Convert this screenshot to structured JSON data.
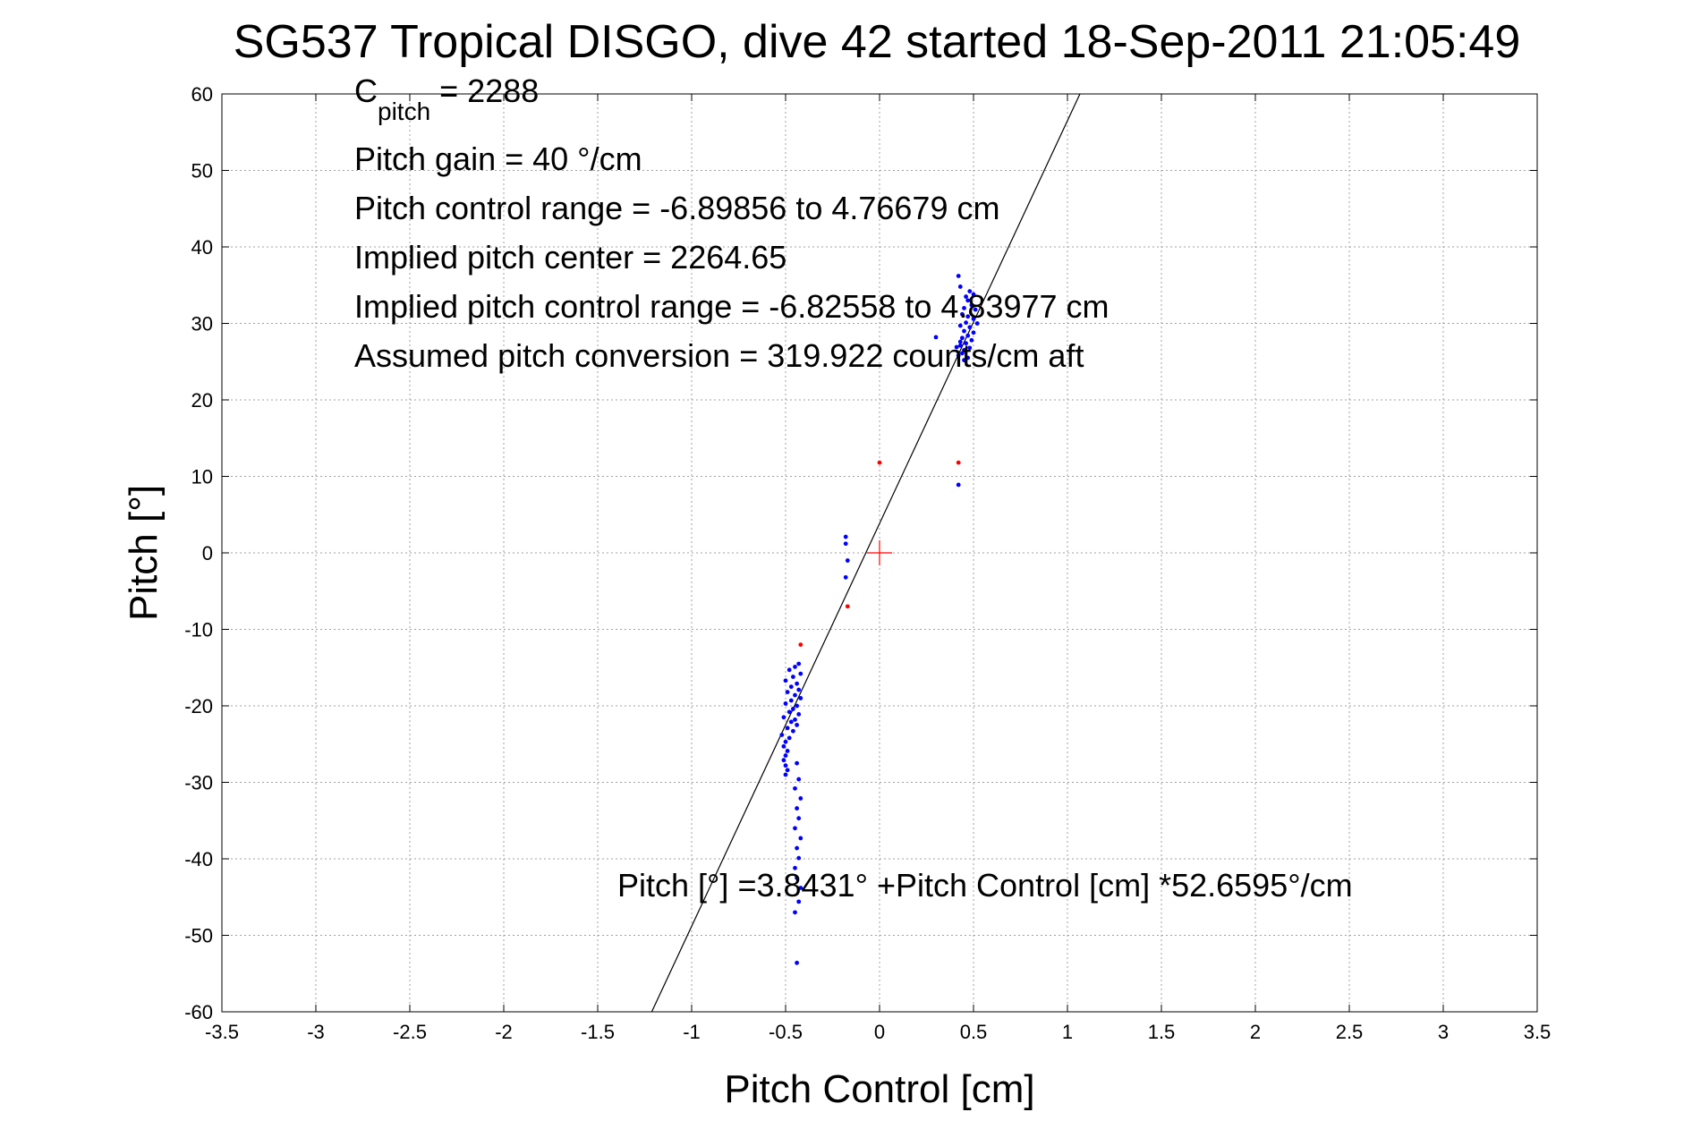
{
  "chart_data": {
    "type": "scatter",
    "title": "SG537 Tropical DISGO, dive 42 started 18-Sep-2011 21:05:49",
    "xlabel": "Pitch Control [cm]",
    "ylabel": "Pitch [°]",
    "xlim": [
      -3.5,
      3.5
    ],
    "ylim": [
      -60,
      60
    ],
    "grid": true,
    "xticks": [
      -3.5,
      -3,
      -2.5,
      -2,
      -1.5,
      -1,
      -0.5,
      0,
      0.5,
      1,
      1.5,
      2,
      2.5,
      3,
      3.5
    ],
    "xtick_labels": [
      "-3.5",
      "-3",
      "-2.5",
      "-2",
      "-1.5",
      "-1",
      "-0.5",
      "0",
      "0.5",
      "1",
      "1.5",
      "2",
      "2.5",
      "3",
      "3.5"
    ],
    "yticks": [
      60,
      50,
      40,
      30,
      20,
      10,
      0,
      -10,
      -20,
      -30,
      -40,
      -50,
      -60
    ],
    "ytick_labels": [
      "60",
      "50",
      "40",
      "30",
      "20",
      "10",
      "0",
      "-10",
      "-20",
      "-30",
      "-40",
      "-50",
      "-60"
    ],
    "annotations": {
      "cpitch_base": "C",
      "cpitch_sub": "pitch",
      "cpitch_value": " = 2288",
      "lines": [
        "Pitch gain = 40 °/cm",
        "Pitch control range = -6.89856 to 4.76679 cm",
        "Implied pitch center = 2264.65",
        "Implied pitch control range = -6.82558 to 4.83977 cm",
        "Assumed pitch conversion = 319.922 counts/cm aft"
      ],
      "fit_equation": "Pitch [°] =3.8431° +Pitch Control [cm] *52.6595°/cm"
    },
    "fit_line": {
      "intercept": 3.8431,
      "slope": 52.6595
    },
    "center_marker": {
      "x": 0,
      "y": 0,
      "color": "#ff0000"
    },
    "colors": {
      "blue": "#0000ff",
      "red": "#ff0000",
      "line": "#000000",
      "grid": "#a0a0a0"
    },
    "series": [
      {
        "color": "#0000ff",
        "points": [
          [
            0.42,
            36.2
          ],
          [
            0.43,
            34.8
          ],
          [
            0.46,
            33.5
          ],
          [
            0.48,
            34.2
          ],
          [
            0.5,
            33.8
          ],
          [
            0.47,
            33.0
          ],
          [
            0.49,
            32.4
          ],
          [
            0.45,
            32.0
          ],
          [
            0.51,
            31.8
          ],
          [
            0.44,
            31.2
          ],
          [
            0.47,
            30.9
          ],
          [
            0.5,
            30.6
          ],
          [
            0.46,
            30.1
          ],
          [
            0.52,
            30.0
          ],
          [
            0.43,
            29.7
          ],
          [
            0.48,
            29.5
          ],
          [
            0.45,
            29.0
          ],
          [
            0.5,
            28.8
          ],
          [
            0.47,
            28.4
          ],
          [
            0.44,
            28.1
          ],
          [
            0.49,
            27.8
          ],
          [
            0.46,
            27.4
          ],
          [
            0.43,
            27.1
          ],
          [
            0.48,
            26.8
          ],
          [
            0.45,
            26.5
          ],
          [
            0.44,
            26.1
          ],
          [
            0.42,
            25.8
          ],
          [
            0.47,
            25.5
          ],
          [
            0.45,
            25.2
          ],
          [
            0.43,
            27.6
          ],
          [
            0.41,
            26.9
          ],
          [
            0.3,
            28.2
          ],
          [
            0.42,
            8.9
          ],
          [
            -0.18,
            2.1
          ],
          [
            -0.18,
            1.2
          ],
          [
            -0.17,
            -1.0
          ],
          [
            -0.18,
            -3.2
          ],
          [
            -0.43,
            -14.5
          ],
          [
            -0.45,
            -14.9
          ],
          [
            -0.48,
            -15.3
          ],
          [
            -0.42,
            -15.8
          ],
          [
            -0.46,
            -16.2
          ],
          [
            -0.5,
            -16.7
          ],
          [
            -0.44,
            -17.1
          ],
          [
            -0.47,
            -17.5
          ],
          [
            -0.43,
            -17.9
          ],
          [
            -0.49,
            -18.2
          ],
          [
            -0.45,
            -18.6
          ],
          [
            -0.42,
            -19.0
          ],
          [
            -0.47,
            -19.3
          ],
          [
            -0.5,
            -19.7
          ],
          [
            -0.44,
            -20.0
          ],
          [
            -0.46,
            -20.4
          ],
          [
            -0.48,
            -20.8
          ],
          [
            -0.43,
            -21.1
          ],
          [
            -0.51,
            -21.5
          ],
          [
            -0.45,
            -21.8
          ],
          [
            -0.47,
            -22.1
          ],
          [
            -0.44,
            -22.5
          ],
          [
            -0.49,
            -22.9
          ],
          [
            -0.46,
            -23.3
          ],
          [
            -0.52,
            -23.8
          ],
          [
            -0.48,
            -24.2
          ],
          [
            -0.5,
            -24.7
          ],
          [
            -0.51,
            -25.3
          ],
          [
            -0.49,
            -25.9
          ],
          [
            -0.5,
            -26.5
          ],
          [
            -0.51,
            -27.1
          ],
          [
            -0.5,
            -27.8
          ],
          [
            -0.49,
            -28.4
          ],
          [
            -0.5,
            -29.0
          ],
          [
            -0.44,
            -27.5
          ],
          [
            -0.43,
            -29.6
          ],
          [
            -0.45,
            -30.8
          ],
          [
            -0.42,
            -32.1
          ],
          [
            -0.44,
            -33.4
          ],
          [
            -0.43,
            -34.7
          ],
          [
            -0.45,
            -36.0
          ],
          [
            -0.42,
            -37.3
          ],
          [
            -0.44,
            -38.6
          ],
          [
            -0.43,
            -39.9
          ],
          [
            -0.45,
            -41.2
          ],
          [
            -0.44,
            -42.5
          ],
          [
            -0.42,
            -43.8
          ],
          [
            -0.43,
            -45.6
          ],
          [
            -0.45,
            -47.0
          ],
          [
            -0.44,
            -53.6
          ]
        ]
      },
      {
        "color": "#ff0000",
        "points": [
          [
            0,
            11.8
          ],
          [
            0.42,
            11.8
          ],
          [
            -0.17,
            -7.0
          ],
          [
            -0.42,
            -12.0
          ]
        ]
      }
    ]
  }
}
